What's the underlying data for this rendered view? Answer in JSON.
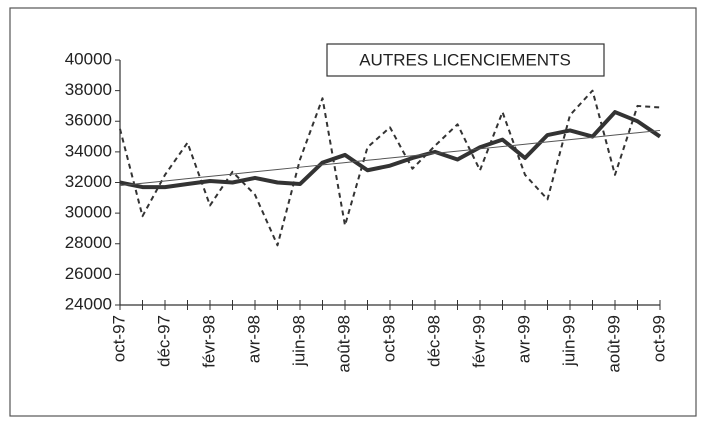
{
  "chart_data": {
    "type": "line",
    "title": "AUTRES LICENCIEMENTS",
    "categories": [
      "oct-97",
      null,
      "déc-97",
      null,
      "févr-98",
      null,
      "avr-98",
      null,
      "juin-98",
      null,
      "août-98",
      null,
      "oct-98",
      null,
      "déc-98",
      null,
      "févr-99",
      null,
      "avr-99",
      null,
      "juin-99",
      null,
      "août-99",
      null,
      "oct-99"
    ],
    "series": [
      {
        "color": "#333333",
        "dash": true,
        "width": 2,
        "values": [
          35500,
          29800,
          32500,
          34600,
          30500,
          32700,
          31200,
          27900,
          33500,
          37500,
          29200,
          34300,
          35600,
          32900,
          34400,
          35800,
          32800,
          36600,
          32500,
          30900,
          36400,
          38000,
          32500,
          37000,
          36900
        ]
      },
      {
        "color": "#333333",
        "dash": false,
        "width": 4,
        "values": [
          32000,
          31700,
          31700,
          31900,
          32100,
          32000,
          32300,
          32000,
          31900,
          33300,
          33800,
          32800,
          33100,
          33600,
          34000,
          33500,
          34300,
          34800,
          33600,
          35100,
          35400,
          35000,
          36600,
          36000,
          35000
        ]
      },
      {
        "color": "#555555",
        "dash": false,
        "width": 1,
        "values": [
          31800,
          31950,
          32100,
          32250,
          32400,
          32550,
          32700,
          32850,
          33000,
          33150,
          33300,
          33450,
          33600,
          33750,
          33900,
          34050,
          34200,
          34350,
          34500,
          34650,
          34800,
          34950,
          35100,
          35250,
          35400
        ]
      }
    ],
    "ylim": [
      24000,
      40000
    ],
    "yticks": [
      24000,
      26000,
      28000,
      30000,
      32000,
      34000,
      36000,
      38000,
      40000
    ]
  }
}
